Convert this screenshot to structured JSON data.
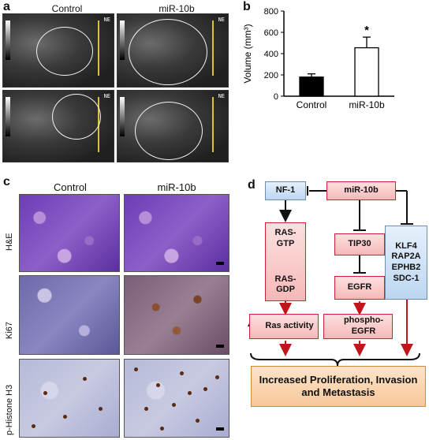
{
  "panels": {
    "a": "a",
    "b": "b",
    "c": "c",
    "d": "d"
  },
  "panel_a": {
    "col_control": "Control",
    "col_mir": "miR-10b",
    "corner_text": "NE"
  },
  "chart_data": {
    "type": "bar",
    "categories": [
      "Control",
      "miR-10b"
    ],
    "values": [
      180,
      455
    ],
    "errors": [
      30,
      100
    ],
    "ylabel": "Volume (mm³)",
    "ylim": [
      0,
      800
    ],
    "yticks": [
      0,
      200,
      400,
      600,
      800
    ],
    "bar_colors": [
      "#000000",
      "#ffffff"
    ],
    "annotation": "*"
  },
  "panel_c": {
    "col_control": "Control",
    "col_mir": "miR-10b",
    "rows": [
      "H&E",
      "Ki67",
      "p-Histone H3"
    ]
  },
  "panel_d": {
    "nf1": "NF-1",
    "mir10b": "miR-10b",
    "rasgtp": "RAS-\nGTP",
    "rasgdp": "RAS-\nGDP",
    "tip30": "TIP30",
    "egfr": "EGFR",
    "targets": "KLF4\nRAP2A\nEPHB2\nSDC-1",
    "ras_activity": "Ras activity",
    "phospho_egfr": "phospho-\nEGFR",
    "outcome": "Increased Proliferation, Invasion\nand Metastasis"
  }
}
